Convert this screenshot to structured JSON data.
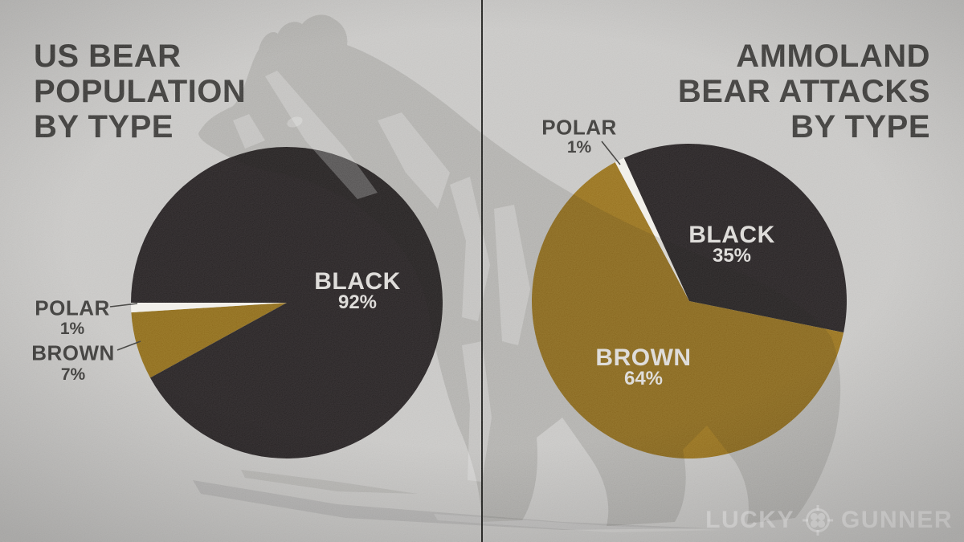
{
  "chart_data": [
    {
      "type": "pie",
      "title": "US BEAR POPULATION BY TYPE",
      "title_lines": [
        "US BEAR",
        "POPULATION",
        "BY TYPE"
      ],
      "title_align": "left",
      "rotation_deg": 241.2,
      "legend": "none",
      "slices": [
        {
          "label": "BROWN",
          "pct": 7,
          "value_label": "7%",
          "color": "#8d6a1c",
          "label_placement": "outside"
        },
        {
          "label": "POLAR",
          "pct": 1,
          "value_label": "1%",
          "color": "#f0eee8",
          "label_placement": "outside"
        },
        {
          "label": "BLACK",
          "pct": 92,
          "value_label": "92%",
          "color": "#272324",
          "label_placement": "inside"
        }
      ]
    },
    {
      "type": "pie",
      "title": "AMMOLAND BEAR ATTACKS BY TYPE",
      "title_lines": [
        "AMMOLAND",
        "BEAR ATTACKS",
        "BY TYPE"
      ],
      "title_align": "right",
      "rotation_deg": 331.9,
      "legend": "none",
      "slices": [
        {
          "label": "POLAR",
          "pct": 1,
          "value_label": "1%",
          "color": "#f0eee8",
          "label_placement": "outside"
        },
        {
          "label": "BLACK",
          "pct": 35,
          "value_label": "35%",
          "color": "#272324",
          "label_placement": "inside"
        },
        {
          "label": "BROWN",
          "pct": 64,
          "value_label": "64%",
          "color": "#96701f",
          "label_placement": "inside"
        }
      ]
    }
  ],
  "branding": {
    "logo_left": "LUCKY",
    "logo_right": "GUNNER",
    "logo_icon": "reticle-clover-icon"
  },
  "colors": {
    "background": "#c6c5c3",
    "title_text": "#3d3c3a",
    "pie_black": "#272324",
    "pie_brown_left": "#8d6a1c",
    "pie_brown_right": "#96701f",
    "pie_polar": "#f0eee8",
    "inside_label_text": "#dbd9d6",
    "divider": "#232321"
  }
}
